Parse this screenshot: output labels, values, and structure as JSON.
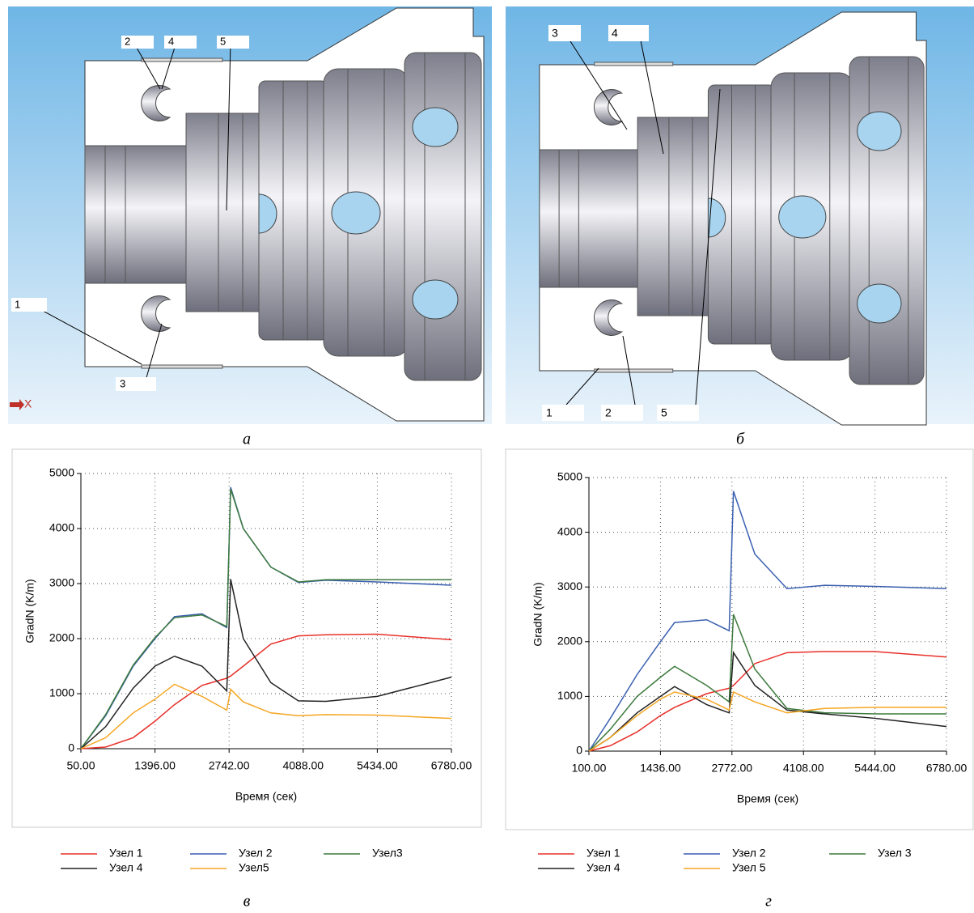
{
  "diagrams": [
    {
      "labels": [
        "2",
        "4",
        "5",
        "1",
        "3"
      ],
      "axis": "X",
      "caption": "а"
    },
    {
      "labels": [
        "3",
        "4",
        "1",
        "2",
        "5"
      ],
      "caption": "б"
    }
  ],
  "chart_data": [
    {
      "type": "line",
      "caption": "в",
      "x_label": "Время (сек)",
      "y_label": "GradN (K/m)",
      "grid": true,
      "x": [
        50,
        500,
        1000,
        1396,
        1750,
        2250,
        2700,
        2770,
        3000,
        3500,
        4000,
        4500,
        5434,
        6780
      ],
      "xlim": [
        50,
        6780
      ],
      "xticks": [
        {
          "value": 50,
          "label": "50.00"
        },
        {
          "value": 1396,
          "label": "1396.00"
        },
        {
          "value": 2742,
          "label": "2742.00"
        },
        {
          "value": 4088,
          "label": "4088.00"
        },
        {
          "value": 5434,
          "label": "5434.00"
        },
        {
          "value": 6780,
          "label": "6780.00"
        }
      ],
      "ylim": [
        0,
        5000
      ],
      "yticks": [
        0,
        1000,
        2000,
        3000,
        4000,
        5000
      ],
      "series": [
        {
          "name": "Узел 1",
          "color": "#e8302a",
          "values": [
            0,
            30,
            200,
            500,
            800,
            1150,
            1280,
            1320,
            1500,
            1900,
            2050,
            2070,
            2080,
            1980
          ]
        },
        {
          "name": "Узел 2",
          "color": "#3a5fb0",
          "values": [
            0,
            600,
            1500,
            2000,
            2400,
            2450,
            2200,
            4750,
            4000,
            3300,
            3020,
            3060,
            3030,
            2970
          ]
        },
        {
          "name": "Узел3",
          "color": "#3d7a3d",
          "values": [
            0,
            620,
            1520,
            2020,
            2380,
            2430,
            2220,
            4720,
            4000,
            3300,
            3030,
            3070,
            3070,
            3070
          ]
        },
        {
          "name": "Узел 4",
          "color": "#222222",
          "values": [
            0,
            400,
            1100,
            1500,
            1680,
            1500,
            1050,
            3080,
            2000,
            1200,
            870,
            860,
            950,
            1300
          ]
        },
        {
          "name": "Узел5",
          "color": "#f5a623",
          "values": [
            0,
            200,
            650,
            900,
            1170,
            950,
            700,
            1080,
            850,
            650,
            600,
            620,
            610,
            550
          ]
        }
      ]
    },
    {
      "type": "line",
      "caption": "г",
      "x_label": "Время (сек)",
      "y_label": "GradN (K/m)",
      "grid": true,
      "x": [
        100,
        500,
        1000,
        1436,
        1700,
        2300,
        2720,
        2800,
        3200,
        3800,
        4500,
        5444,
        6780
      ],
      "xlim": [
        100,
        6780
      ],
      "xticks": [
        {
          "value": 100,
          "label": "100.00"
        },
        {
          "value": 1436,
          "label": "1436.00"
        },
        {
          "value": 2772,
          "label": "2772.00"
        },
        {
          "value": 4108,
          "label": "4108.00"
        },
        {
          "value": 5444,
          "label": "5444.00"
        },
        {
          "value": 6780,
          "label": "6780.00"
        }
      ],
      "ylim": [
        0,
        5000
      ],
      "yticks": [
        0,
        1000,
        2000,
        3000,
        4000,
        5000
      ],
      "series": [
        {
          "name": "Узел 1",
          "color": "#e8302a",
          "values": [
            0,
            100,
            350,
            650,
            800,
            1050,
            1150,
            1200,
            1600,
            1800,
            1820,
            1820,
            1720
          ]
        },
        {
          "name": "Узел 2",
          "color": "#3a5fb0",
          "values": [
            0,
            600,
            1400,
            2000,
            2350,
            2400,
            2200,
            4750,
            3600,
            2970,
            3030,
            3010,
            2970
          ]
        },
        {
          "name": "Узел 3",
          "color": "#3d7a3d",
          "values": [
            0,
            400,
            1000,
            1350,
            1550,
            1200,
            900,
            2500,
            1500,
            780,
            700,
            680,
            680
          ]
        },
        {
          "name": "Узел 4",
          "color": "#222222",
          "values": [
            0,
            250,
            700,
            1000,
            1180,
            850,
            700,
            1800,
            1200,
            750,
            680,
            600,
            450
          ]
        },
        {
          "name": "Узел 5",
          "color": "#f5a623",
          "values": [
            0,
            250,
            650,
            950,
            1080,
            950,
            750,
            1080,
            900,
            700,
            780,
            800,
            800
          ]
        }
      ]
    }
  ]
}
